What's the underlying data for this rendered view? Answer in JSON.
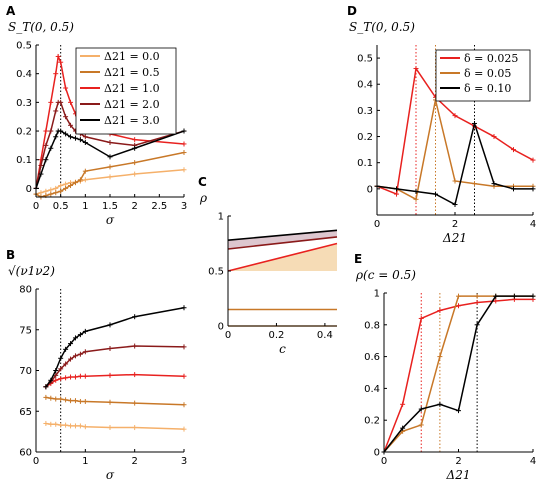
{
  "chart_data": [
    {
      "id": "A",
      "type": "line",
      "panel_label": "A",
      "ylabel": "S_T(0, 0.5)",
      "xlabel": "σ",
      "xlim": [
        0,
        3
      ],
      "ylim": [
        -0.03,
        0.5
      ],
      "xticks": [
        "0",
        "0.5",
        "1",
        "1.5",
        "2",
        "2.5",
        "3"
      ],
      "yticks": [
        "0",
        "0.1",
        "0.2",
        "0.3",
        "0.4",
        "0.5"
      ],
      "vline": 0.5,
      "legend_position": "top-right",
      "series": [
        {
          "name": "Δ21 = 0.0",
          "color": "#f5b06a",
          "x": [
            0,
            0.1,
            0.2,
            0.3,
            0.4,
            0.5,
            0.6,
            0.7,
            0.8,
            0.9,
            1.0,
            1.5,
            2.0,
            3.0
          ],
          "y": [
            -0.02,
            -0.015,
            -0.01,
            -0.005,
            0.0,
            0.01,
            0.015,
            0.02,
            0.022,
            0.025,
            0.03,
            0.04,
            0.05,
            0.065
          ]
        },
        {
          "name": "Δ21 = 0.5",
          "color": "#c87828",
          "x": [
            0,
            0.1,
            0.2,
            0.3,
            0.4,
            0.5,
            0.6,
            0.7,
            0.8,
            0.9,
            1.0,
            1.5,
            2.0,
            3.0
          ],
          "y": [
            -0.02,
            -0.03,
            -0.025,
            -0.02,
            -0.015,
            -0.01,
            0.0,
            0.01,
            0.02,
            0.03,
            0.06,
            0.075,
            0.09,
            0.125
          ]
        },
        {
          "name": "Δ21 = 1.0",
          "color": "#e8211f",
          "x": [
            0,
            0.1,
            0.2,
            0.3,
            0.4,
            0.45,
            0.5,
            0.6,
            0.7,
            0.8,
            0.9,
            1.0,
            1.5,
            2.0,
            3.0
          ],
          "y": [
            0,
            0.1,
            0.2,
            0.3,
            0.4,
            0.46,
            0.44,
            0.35,
            0.3,
            0.26,
            0.24,
            0.22,
            0.19,
            0.17,
            0.155
          ]
        },
        {
          "name": "Δ21 = 2.0",
          "color": "#8a1a1a",
          "x": [
            0,
            0.1,
            0.2,
            0.3,
            0.4,
            0.45,
            0.5,
            0.6,
            0.7,
            0.8,
            0.9,
            1.0,
            1.5,
            2.0,
            3.0
          ],
          "y": [
            0,
            0.08,
            0.15,
            0.2,
            0.27,
            0.3,
            0.3,
            0.25,
            0.22,
            0.2,
            0.19,
            0.18,
            0.16,
            0.15,
            0.2
          ]
        },
        {
          "name": "Δ21 = 3.0",
          "color": "#000000",
          "x": [
            0,
            0.1,
            0.2,
            0.3,
            0.4,
            0.45,
            0.5,
            0.6,
            0.7,
            0.8,
            0.9,
            1.0,
            1.5,
            2.0,
            3.0
          ],
          "y": [
            0,
            0.05,
            0.1,
            0.14,
            0.18,
            0.2,
            0.2,
            0.19,
            0.18,
            0.175,
            0.17,
            0.16,
            0.11,
            0.14,
            0.2
          ]
        }
      ]
    },
    {
      "id": "B",
      "type": "line",
      "panel_label": "B",
      "ylabel": "√(ν1ν2)",
      "xlabel": "σ",
      "xlim": [
        0,
        3
      ],
      "ylim": [
        60,
        80
      ],
      "xticks": [
        "0",
        "1",
        "2",
        "3"
      ],
      "yticks": [
        "60",
        "65",
        "70",
        "75",
        "80"
      ],
      "vline": 0.5,
      "series": [
        {
          "name": "Δ21 = 0.0",
          "color": "#f5b06a",
          "x": [
            0.2,
            0.3,
            0.4,
            0.5,
            0.6,
            0.7,
            0.8,
            0.9,
            1.0,
            1.5,
            2.0,
            3.0
          ],
          "y": [
            63.5,
            63.4,
            63.4,
            63.3,
            63.3,
            63.2,
            63.2,
            63.2,
            63.1,
            63.0,
            63.0,
            62.8
          ]
        },
        {
          "name": "Δ21 = 0.5",
          "color": "#c87828",
          "x": [
            0.2,
            0.3,
            0.4,
            0.5,
            0.6,
            0.7,
            0.8,
            0.9,
            1.0,
            1.5,
            2.0,
            3.0
          ],
          "y": [
            66.7,
            66.6,
            66.5,
            66.5,
            66.4,
            66.3,
            66.3,
            66.2,
            66.2,
            66.1,
            66.0,
            65.8
          ]
        },
        {
          "name": "Δ21 = 1.0",
          "color": "#e8211f",
          "x": [
            0.2,
            0.3,
            0.4,
            0.5,
            0.6,
            0.7,
            0.8,
            0.9,
            1.0,
            1.5,
            2.0,
            3.0
          ],
          "y": [
            68.0,
            68.4,
            68.8,
            69.0,
            69.1,
            69.2,
            69.2,
            69.3,
            69.3,
            69.4,
            69.5,
            69.3
          ]
        },
        {
          "name": "Δ21 = 2.0",
          "color": "#8a1a1a",
          "x": [
            0.2,
            0.3,
            0.4,
            0.5,
            0.6,
            0.7,
            0.8,
            0.9,
            1.0,
            1.5,
            2.0,
            3.0
          ],
          "y": [
            68.0,
            68.6,
            69.4,
            70.2,
            70.8,
            71.4,
            71.8,
            72.0,
            72.3,
            72.7,
            73.0,
            72.9
          ]
        },
        {
          "name": "Δ21 = 3.0",
          "color": "#000000",
          "x": [
            0.2,
            0.3,
            0.4,
            0.5,
            0.6,
            0.7,
            0.8,
            0.9,
            1.0,
            1.5,
            2.0,
            3.0
          ],
          "y": [
            68.0,
            68.8,
            70.0,
            71.5,
            72.6,
            73.3,
            74.0,
            74.4,
            74.8,
            75.6,
            76.6,
            77.7
          ]
        }
      ]
    },
    {
      "id": "C",
      "type": "area",
      "panel_label": "C",
      "ylabel": "ρ",
      "xlabel": "c",
      "xlim": [
        0,
        0.45
      ],
      "ylim": [
        0,
        1
      ],
      "xticks": [
        "0",
        "0.2",
        "0.4"
      ],
      "yticks": [
        "0",
        "0.5",
        "1"
      ],
      "series": [
        {
          "name": "Δ21 = 0.0",
          "color": "#f5b06a",
          "x": [
            0,
            0.45
          ],
          "y": [
            0.0,
            0.0
          ]
        },
        {
          "name": "Δ21 = 0.5",
          "color": "#c87828",
          "x": [
            0,
            0.45
          ],
          "y": [
            0.15,
            0.15
          ]
        },
        {
          "name": "Δ21 = 1.0",
          "color": "#e8211f",
          "x": [
            0,
            0.45
          ],
          "y": [
            0.5,
            0.75
          ]
        },
        {
          "name": "Δ21 = 2.0",
          "color": "#8a1a1a",
          "x": [
            0,
            0.45
          ],
          "y": [
            0.7,
            0.81
          ]
        },
        {
          "name": "Δ21 = 3.0",
          "color": "#000000",
          "x": [
            0,
            0.45
          ],
          "y": [
            0.78,
            0.87
          ]
        }
      ]
    },
    {
      "id": "D",
      "type": "line",
      "panel_label": "D",
      "ylabel": "S_T(0, 0.5)",
      "xlabel": "Δ21",
      "xlim": [
        0,
        4
      ],
      "ylim": [
        -0.1,
        0.55
      ],
      "xticks": [
        "0",
        "2",
        "4"
      ],
      "yticks": [
        "0",
        "0.1",
        "0.2",
        "0.3",
        "0.4",
        "0.5"
      ],
      "vlines": [
        1.0,
        1.5,
        2.5
      ],
      "legend_position": "top-right",
      "series": [
        {
          "name": "δ = 0.025",
          "color": "#e8211f",
          "x": [
            0,
            0.5,
            1.0,
            1.5,
            2.0,
            2.5,
            3.0,
            3.5,
            4.0
          ],
          "y": [
            0.01,
            -0.02,
            0.46,
            0.35,
            0.28,
            0.24,
            0.2,
            0.15,
            0.11
          ]
        },
        {
          "name": "δ = 0.05",
          "color": "#c87828",
          "x": [
            0,
            0.5,
            1.0,
            1.5,
            2.0,
            2.5,
            3.0,
            3.5,
            4.0
          ],
          "y": [
            0.01,
            0.0,
            -0.04,
            0.34,
            0.03,
            0.02,
            0.01,
            0.01,
            0.01
          ]
        },
        {
          "name": "δ = 0.10",
          "color": "#000000",
          "x": [
            0,
            0.5,
            1.0,
            1.5,
            2.0,
            2.5,
            3.0,
            3.5,
            4.0
          ],
          "y": [
            0.01,
            0.0,
            -0.01,
            -0.02,
            -0.06,
            0.25,
            0.02,
            0.0,
            0.0
          ]
        }
      ]
    },
    {
      "id": "E",
      "type": "line",
      "panel_label": "E",
      "ylabel": "ρ(c = 0.5)",
      "xlabel": "Δ21",
      "xlim": [
        0,
        4
      ],
      "ylim": [
        0,
        1
      ],
      "xticks": [
        "0",
        "2",
        "4"
      ],
      "yticks": [
        "0",
        "0.2",
        "0.4",
        "0.6",
        "0.8",
        "1"
      ],
      "vlines": [
        1.0,
        1.5,
        2.5
      ],
      "series": [
        {
          "name": "δ = 0.025",
          "color": "#e8211f",
          "x": [
            0,
            0.5,
            1.0,
            1.5,
            2.0,
            2.5,
            3.0,
            3.5,
            4.0
          ],
          "y": [
            0,
            0.3,
            0.84,
            0.89,
            0.92,
            0.94,
            0.95,
            0.96,
            0.96
          ]
        },
        {
          "name": "δ = 0.05",
          "color": "#c87828",
          "x": [
            0,
            0.5,
            1.0,
            1.5,
            2.0,
            2.5,
            3.0,
            3.5,
            4.0
          ],
          "y": [
            0,
            0.13,
            0.17,
            0.6,
            0.98,
            0.98,
            0.98,
            0.98,
            0.98
          ]
        },
        {
          "name": "δ = 0.10",
          "color": "#000000",
          "x": [
            0,
            0.5,
            1.0,
            1.5,
            2.0,
            2.5,
            3.0,
            3.5,
            4.0
          ],
          "y": [
            0,
            0.15,
            0.27,
            0.3,
            0.26,
            0.8,
            0.98,
            0.98,
            0.98
          ]
        }
      ]
    }
  ]
}
